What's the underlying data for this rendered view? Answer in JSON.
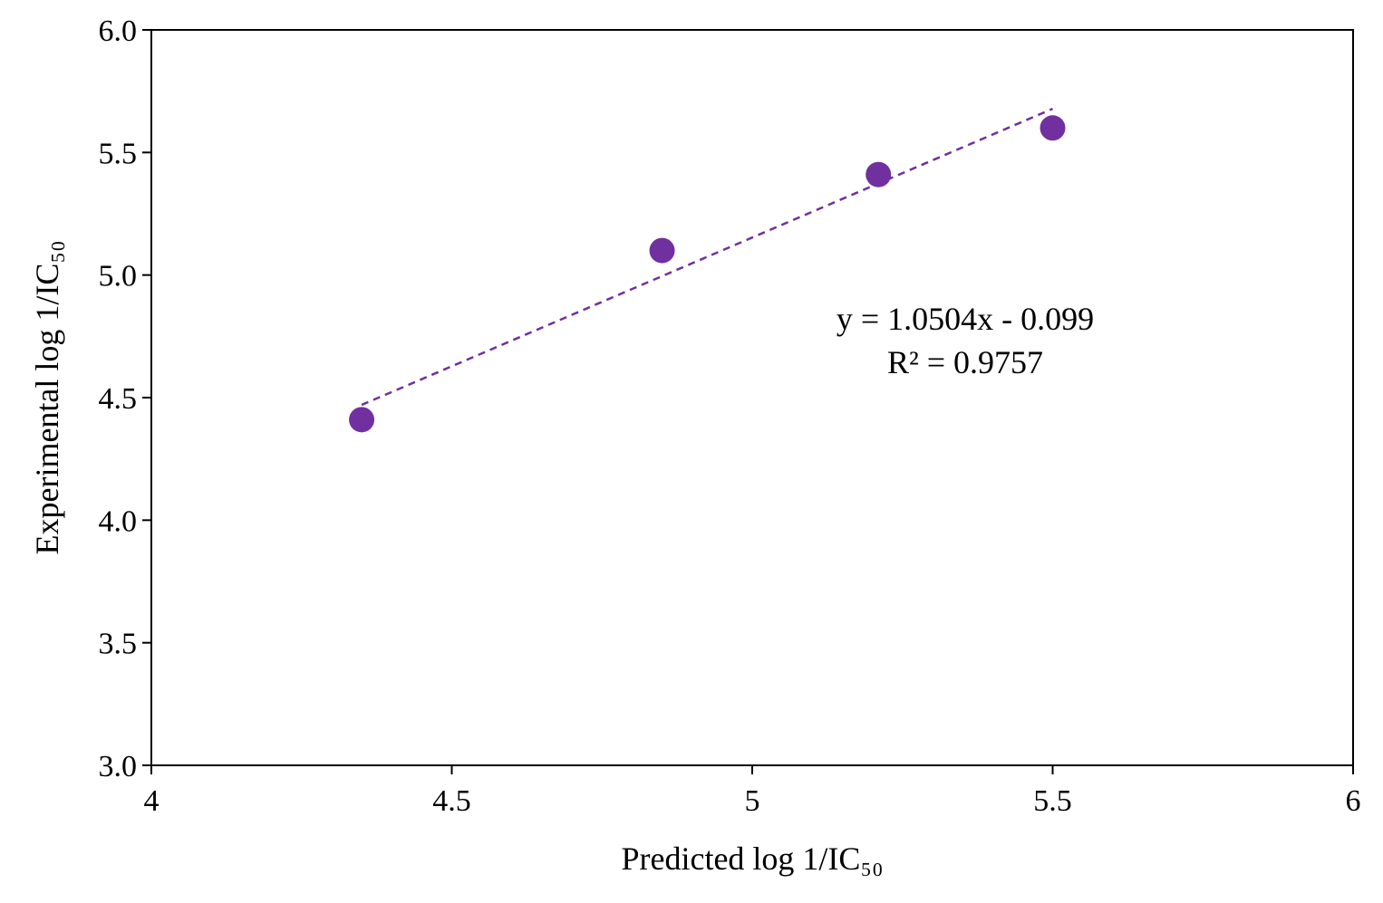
{
  "chart_data": {
    "type": "scatter",
    "title": "",
    "xlabel": "Predicted log 1/IC₅₀",
    "ylabel": "Experimental log 1/IC₅₀",
    "xlim": [
      4,
      6
    ],
    "ylim": [
      3.0,
      6.0
    ],
    "x_ticks": [
      "4",
      "4.5",
      "5",
      "5.5",
      "6"
    ],
    "y_ticks": [
      "3.0",
      "3.5",
      "4.0",
      "4.5",
      "5.0",
      "5.5",
      "6.0"
    ],
    "series": [
      {
        "color": "#7030A0",
        "points": [
          {
            "x": 4.35,
            "y": 4.41
          },
          {
            "x": 4.85,
            "y": 5.1
          },
          {
            "x": 5.21,
            "y": 5.41
          },
          {
            "x": 5.5,
            "y": 5.6
          }
        ]
      }
    ],
    "trendline": {
      "style": "dashed",
      "color": "#7030A0",
      "slope": 1.0504,
      "intercept": -0.099,
      "x_range": [
        4.35,
        5.5
      ]
    },
    "annotation": {
      "equation": "y = 1.0504x - 0.099",
      "r_squared": "R² = 0.9757"
    },
    "grid": false,
    "legend": "none"
  }
}
